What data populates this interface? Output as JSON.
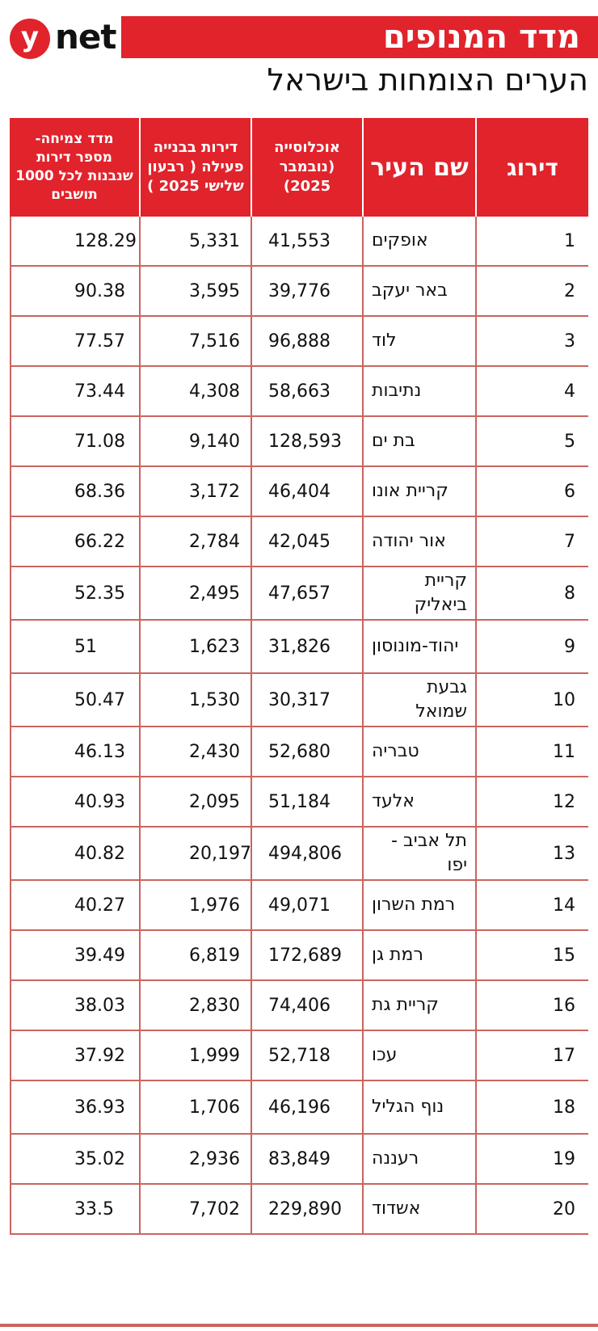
{
  "brand": {
    "logo_letter": "y",
    "logo_word": "net"
  },
  "header": {
    "title": "מדד המנופים",
    "subtitle": "הערים הצומחות בישראל"
  },
  "chart_data": {
    "type": "table",
    "columns": [
      "דירוג",
      "שם העיר",
      "אוכלוסייה (נובמבר 2025)",
      "דירות בבנייה פעילה ( רבעון שלישי 2025 )",
      "מדד צמיחה- מספר דירות שנבנות לכל 1000 תושבים"
    ],
    "rows": [
      [
        "1",
        "אופקים",
        "41,553",
        "5,331",
        "128.29"
      ],
      [
        "2",
        "באר יעקב",
        "39,776",
        "3,595",
        "90.38"
      ],
      [
        "3",
        "לוד",
        "96,888",
        "7,516",
        "77.57"
      ],
      [
        "4",
        "נתיבות",
        "58,663",
        "4,308",
        "73.44"
      ],
      [
        "5",
        "בת ים",
        "128,593",
        "9,140",
        "71.08"
      ],
      [
        "6",
        "קריית אונו",
        "46,404",
        "3,172",
        "68.36"
      ],
      [
        "7",
        "אור יהודה",
        "42,045",
        "2,784",
        "66.22"
      ],
      [
        "8",
        "קריית ביאליק",
        "47,657",
        "2,495",
        "52.35"
      ],
      [
        "9",
        "יהוד-מונוסון",
        "31,826",
        "1,623",
        "51"
      ],
      [
        "10",
        "גבעת שמואל",
        "30,317",
        "1,530",
        "50.47"
      ],
      [
        "11",
        "טבריה",
        "52,680",
        "2,430",
        "46.13"
      ],
      [
        "12",
        "אלעד",
        "51,184",
        "2,095",
        "40.93"
      ],
      [
        "13",
        "תל אביב -יפו",
        "494,806",
        "20,197",
        "40.82"
      ],
      [
        "14",
        "רמת השרון",
        "49,071",
        "1,976",
        "40.27"
      ],
      [
        "15",
        "רמת גן",
        "172,689",
        "6,819",
        "39.49"
      ],
      [
        "16",
        "קריית גת",
        "74,406",
        "2,830",
        "38.03"
      ],
      [
        "17",
        "עכו",
        "52,718",
        "1,999",
        "37.92"
      ],
      [
        "18",
        "נוף הגליל",
        "46,196",
        "1,706",
        "36.93"
      ],
      [
        "19",
        "רעננה",
        "83,849",
        "2,936",
        "35.02"
      ],
      [
        "20",
        "אשדוד",
        "229,890",
        "7,702",
        "33.5"
      ]
    ],
    "accent_color": "#e1232c",
    "rule_color": "#c9655f"
  }
}
